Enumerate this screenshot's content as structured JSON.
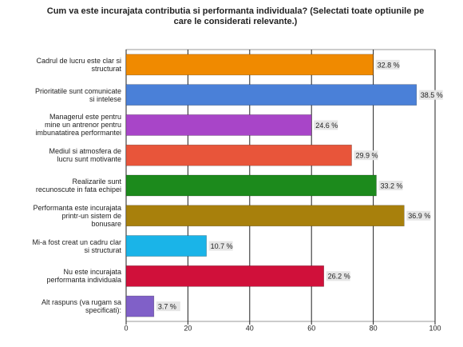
{
  "chart_data": {
    "type": "hbar",
    "title": "Cum va este incurajata contributia si performanta individuala? (Selectati toate optiunile pe care le considerati relevante.)",
    "categories": [
      "Cadrul de lucru este clar si structurat",
      "Prioritatile sunt comunicate si intelese",
      "Managerul este pentru mine un antrenor pentru imbunatatirea performantei",
      "Mediul si atmosfera de lucru sunt motivante",
      "Realizarile sunt recunoscute in fata echipei",
      "Performanta este incurajata printr-un sistem de bonusare",
      "Mi-a fost creat un cadru clar si structurat",
      "Nu este incurajata performanta individuala",
      "Alt raspuns (va rugam sa specificati):"
    ],
    "values": [
      80,
      94,
      60,
      73,
      81,
      90,
      26,
      64,
      9
    ],
    "colors": [
      "#f08a00",
      "#4a80d8",
      "#a845c8",
      "#e8553a",
      "#1c8a1c",
      "#a8800c",
      "#1ab4e8",
      "#d0103a",
      "#8060c8"
    ],
    "percents": [
      32.8,
      38.5,
      24.6,
      29.9,
      33.2,
      36.9,
      10.7,
      26.2,
      3.7
    ],
    "percent_labels": [
      "32.8 %",
      "38.5 %",
      "24.6 %",
      "29.9 %",
      "33.2 %",
      "36.9 %",
      "10.7 %",
      "26.2 %",
      "3.7 %"
    ],
    "xlim": [
      0,
      100
    ],
    "xticks": [
      0,
      20,
      40,
      60,
      80,
      100
    ],
    "grid": true
  }
}
